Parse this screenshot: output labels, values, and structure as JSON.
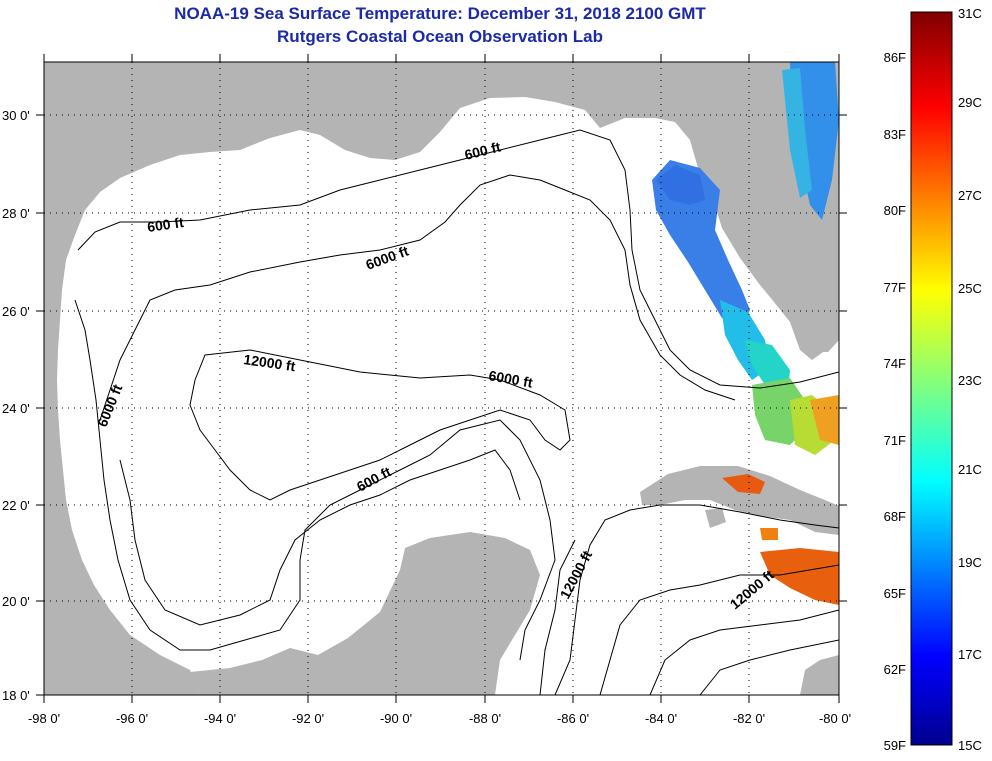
{
  "title": {
    "line1": "NOAA-19 Sea Surface Temperature:  December 31, 2018 2100 GMT",
    "line2": "Rutgers Coastal Ocean Observation Lab"
  },
  "map": {
    "region": "Gulf of Mexico",
    "lon_range": [
      -98,
      -80
    ],
    "lat_range": [
      18,
      31
    ],
    "lon_ticks": [
      "-98 0'",
      "-96 0'",
      "-94 0'",
      "-92 0'",
      "-90 0'",
      "-88 0'",
      "-86 0'",
      "-84 0'",
      "-82 0'",
      "-80 0'"
    ],
    "lat_ticks": [
      "30 0'",
      "28 0'",
      "26 0'",
      "24 0'",
      "22 0'",
      "20 0'",
      "18 0'"
    ],
    "grid": "dotted",
    "contour_labels": [
      "600 ft",
      "600 ft",
      "6000 ft",
      "12000 ft",
      "6000 ft",
      "6000 ft",
      "600 ft",
      "12000 ft",
      "12000 ft"
    ],
    "colors": {
      "land": "#b4b4b4",
      "water_no_data": "#ffffff",
      "contour": "#000000"
    }
  },
  "colorbar": {
    "fahrenheit": [
      "86F",
      "83F",
      "80F",
      "77F",
      "74F",
      "71F",
      "68F",
      "65F",
      "62F",
      "59F"
    ],
    "celsius": [
      "31C",
      "29C",
      "27C",
      "25C",
      "23C",
      "21C",
      "19C",
      "17C",
      "15C"
    ],
    "range_c": [
      15,
      31
    ],
    "colormap": "jet"
  }
}
